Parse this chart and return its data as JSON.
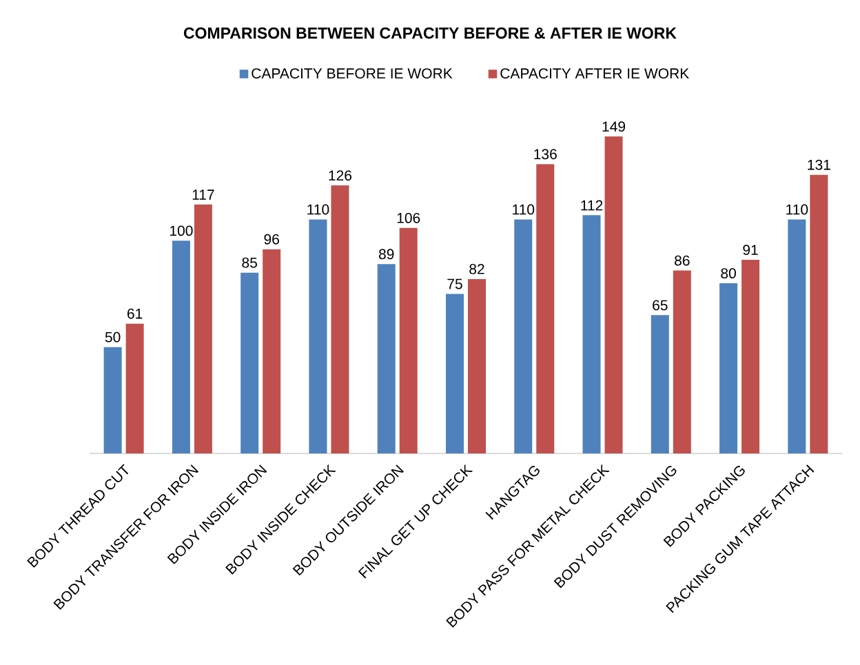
{
  "chart_data": {
    "type": "bar",
    "title": "COMPARISON BETWEEN CAPACITY BEFORE & AFTER IE WORK",
    "categories": [
      "BODY THREAD CUT",
      "BODY TRANSFER FOR IRON",
      "BODY INSIDE IRON",
      "BODY INSIDE CHECK",
      "BODY OUTSIDE IRON",
      "FINAL GET UP CHECK",
      "HANGTAG",
      "BODY PASS FOR METAL CHECK",
      "BODY DUST REMOVING",
      "BODY PACKING",
      "PACKING GUM TAPE ATTACH"
    ],
    "series": [
      {
        "name": "CAPACITY BEFORE IE WORK",
        "color": "#4f81bd",
        "values": [
          50,
          100,
          85,
          110,
          89,
          75,
          110,
          112,
          65,
          80,
          110
        ]
      },
      {
        "name": "CAPACITY AFTER IE WORK",
        "color": "#c0504d",
        "values": [
          61,
          117,
          96,
          126,
          106,
          82,
          136,
          149,
          86,
          91,
          131
        ]
      }
    ],
    "ylim": [
      0,
      180
    ],
    "data_labels": true,
    "legend": "top",
    "tick_labels": "x"
  }
}
